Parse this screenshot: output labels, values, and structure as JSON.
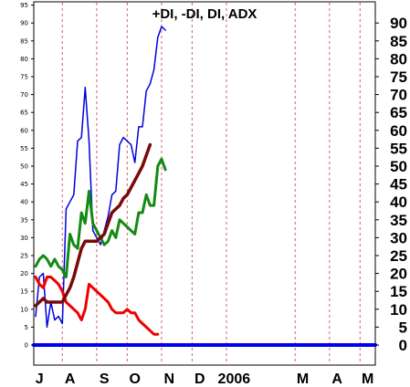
{
  "chart_data": {
    "type": "line",
    "title": "+DI, -DI, DI, ADX",
    "xlabel": "",
    "ylabel": "",
    "ylim": [
      -5,
      97
    ],
    "y_ticks_left": [
      0,
      5,
      10,
      15,
      20,
      25,
      30,
      35,
      40,
      45,
      50,
      55,
      60,
      65,
      70,
      75,
      80,
      85,
      90,
      95
    ],
    "y_ticks_right": [
      0,
      5,
      10,
      15,
      20,
      25,
      30,
      35,
      40,
      45,
      50,
      55,
      60,
      65,
      70,
      75,
      80,
      85,
      90
    ],
    "x_ticks": [
      {
        "label": "J",
        "i": 1
      },
      {
        "label": "A",
        "i": 9
      },
      {
        "label": "S",
        "i": 18
      },
      {
        "label": "O",
        "i": 26
      },
      {
        "label": "N",
        "i": 35
      },
      {
        "label": "D",
        "i": 43
      },
      {
        "label": "2006",
        "i": 52
      },
      {
        "label": "M",
        "i": 70
      },
      {
        "label": "A",
        "i": 79
      },
      {
        "label": "M",
        "i": 87
      }
    ],
    "x_count": 90,
    "grid": "vertical dashed at month starts",
    "series": [
      {
        "color": "#0000dd",
        "width": 1.5,
        "values": [
          8,
          19,
          20,
          5,
          12,
          7,
          8,
          6,
          38,
          40,
          42,
          57,
          58,
          72,
          57,
          32,
          30,
          28,
          32,
          36,
          42,
          43,
          56,
          58,
          57,
          56,
          51,
          61,
          61,
          71,
          73,
          77,
          86,
          89,
          88
        ]
      },
      {
        "color": "#ee0000",
        "width": 3,
        "values": [
          19,
          17,
          16,
          19,
          19,
          18,
          17,
          15,
          12,
          11,
          10,
          9,
          7,
          10,
          17,
          16,
          15,
          14,
          13,
          12,
          10,
          9,
          9,
          9,
          10,
          9,
          9,
          7,
          6,
          5,
          4,
          3,
          3
        ]
      },
      {
        "color": "#138a13",
        "width": 3,
        "values": [
          22,
          24,
          25,
          24,
          22,
          24,
          22,
          21,
          19,
          31,
          28,
          27,
          37,
          34,
          43,
          34,
          32,
          30,
          28,
          29,
          32,
          30,
          35,
          34,
          33,
          32,
          31,
          37,
          37,
          42,
          39,
          39,
          50,
          52,
          49
        ]
      },
      {
        "color": "#7a0a0a",
        "width": 3.5,
        "values": [
          11,
          12,
          13,
          12,
          12,
          12,
          12,
          12,
          14,
          16,
          19,
          23,
          27,
          29,
          29,
          29,
          29,
          30,
          31,
          34,
          37,
          38,
          39,
          41,
          42,
          44,
          46,
          48,
          50,
          53,
          56
        ]
      },
      {
        "color": "#0000ee",
        "width": 4,
        "values": [
          0,
          0
        ]
      }
    ]
  }
}
